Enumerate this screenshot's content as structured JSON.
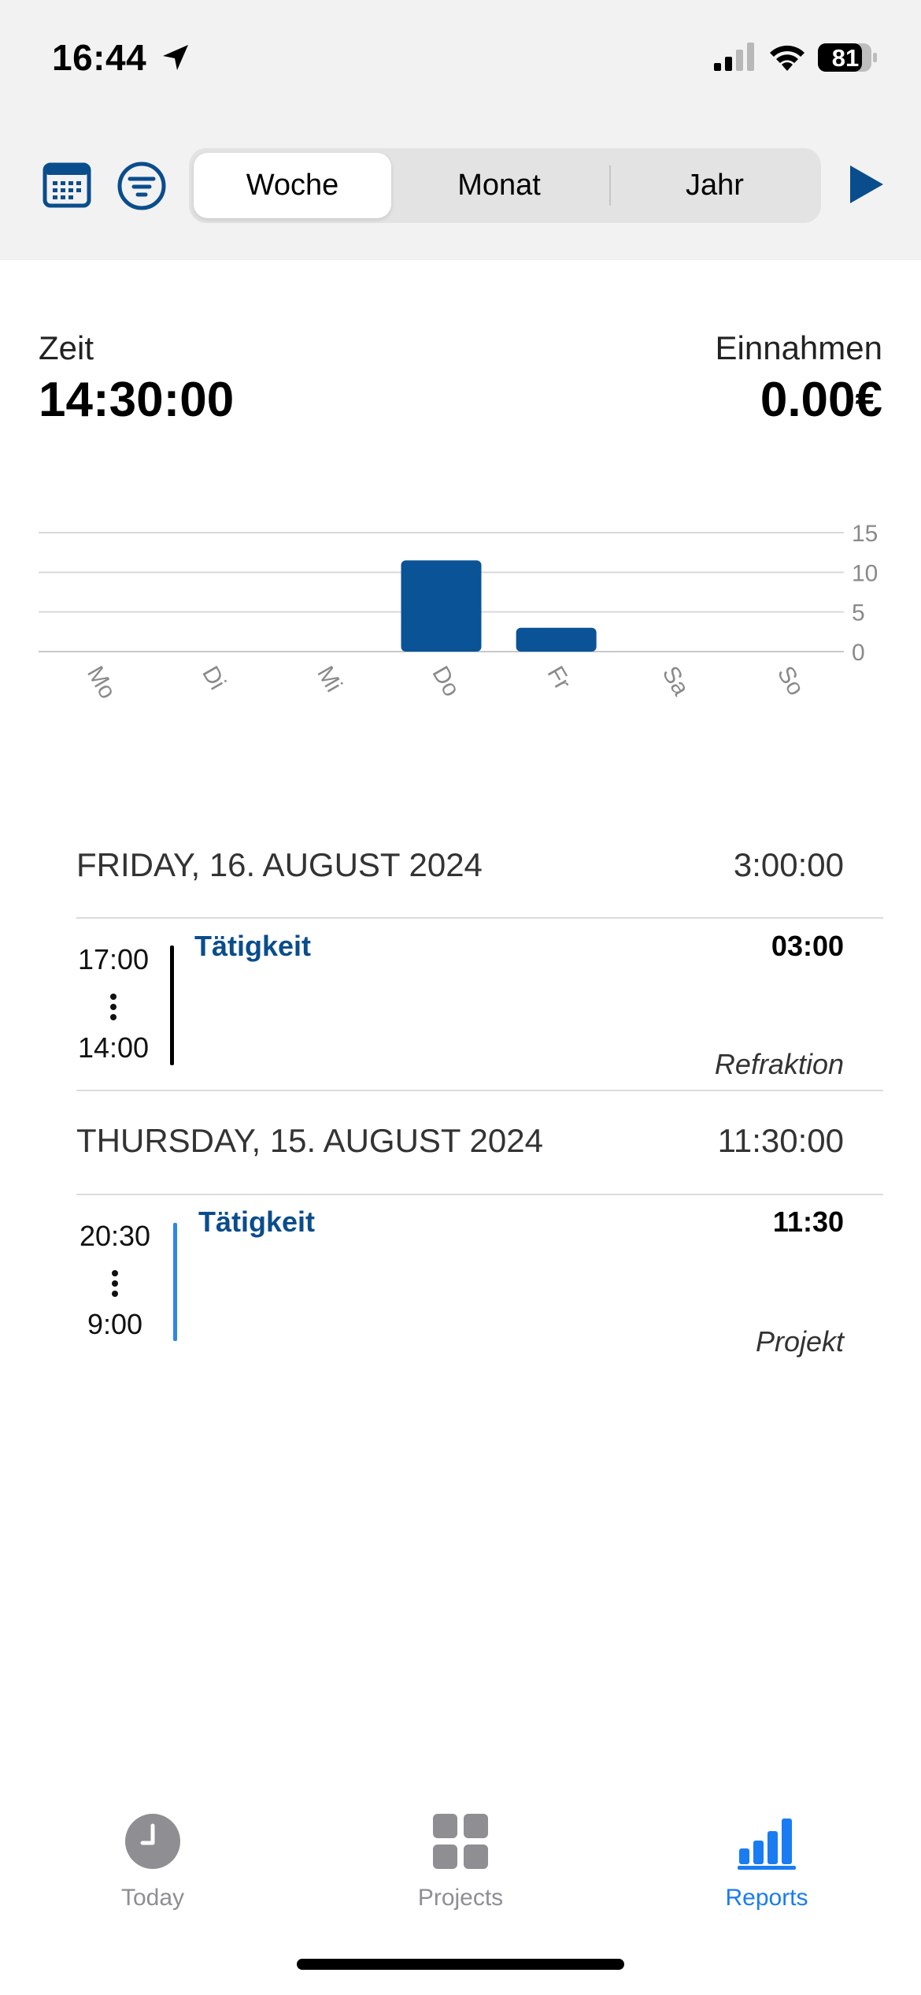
{
  "status_bar": {
    "time": "16:44",
    "battery": "81",
    "icons": [
      "location-arrow-icon",
      "cellular-signal-icon",
      "wifi-icon",
      "battery-icon"
    ]
  },
  "toolbar": {
    "icons": [
      "calendar-icon",
      "filter-icon",
      "play-icon"
    ],
    "segments": [
      "Woche",
      "Monat",
      "Jahr"
    ],
    "selected_segment": "Woche",
    "accent_color": "#0a4d8c"
  },
  "summary": {
    "time_label": "Zeit",
    "time_value": "14:30:00",
    "income_label": "Einnahmen",
    "income_value": "0.00€"
  },
  "chart_data": {
    "type": "bar",
    "categories": [
      "Mo",
      "Di",
      "Mi",
      "Do",
      "Fr",
      "Sa",
      "So"
    ],
    "values": [
      0,
      0,
      0,
      11.5,
      3,
      0,
      0
    ],
    "yticks": [
      "0",
      "5",
      "10",
      "15"
    ],
    "ylim": [
      0,
      15
    ],
    "grid": true,
    "bar_color": "#0a5396"
  },
  "days": [
    {
      "title": "FRIDAY, 16. AUGUST 2024",
      "total": "3:00:00",
      "entries": [
        {
          "end": "17:00",
          "start": "14:00",
          "title": "Tätigkeit",
          "duration": "03:00",
          "project": "Refraktion",
          "bar_color": "#000000"
        }
      ]
    },
    {
      "title": "THURSDAY, 15. AUGUST 2024",
      "total": "11:30:00",
      "entries": [
        {
          "end": "20:30",
          "start": "9:00",
          "title": "Tätigkeit",
          "duration": "11:30",
          "project": "Projekt",
          "bar_color": "#2f86e8"
        }
      ]
    }
  ],
  "tab_bar": {
    "tabs": [
      {
        "label": "Today",
        "icon": "clock-icon"
      },
      {
        "label": "Projects",
        "icon": "grid-icon"
      },
      {
        "label": "Reports",
        "icon": "bar-chart-icon"
      }
    ],
    "active": "Reports",
    "active_color": "#1a7cf2",
    "inactive_color": "#8e8e93"
  }
}
